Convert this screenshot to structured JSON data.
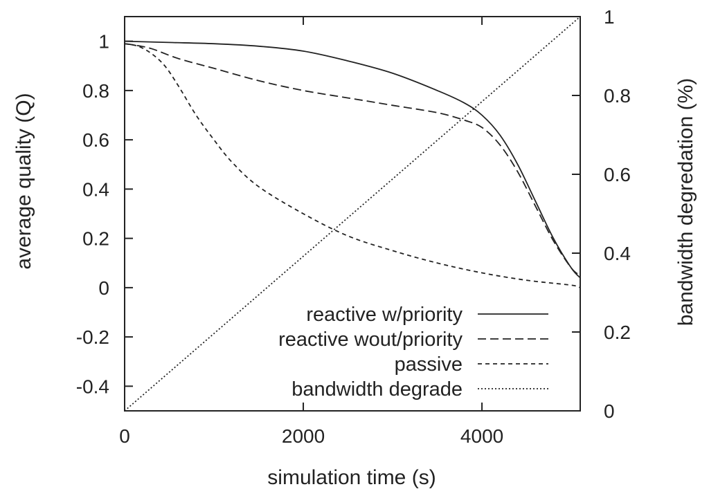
{
  "chart_data": {
    "type": "line",
    "xlabel": "simulation time (s)",
    "ylabel": "average quality (Q)",
    "y2label": "bandwidth degredation (%)",
    "xlim": [
      0,
      5100
    ],
    "ylim": [
      -0.5,
      1.1
    ],
    "y2lim": [
      0,
      1
    ],
    "xticks": [
      0,
      2000,
      4000
    ],
    "yticks": [
      -0.4,
      -0.2,
      0,
      0.2,
      0.4,
      0.6,
      0.8,
      1
    ],
    "y2ticks": [
      0,
      0.2,
      0.4,
      0.6,
      0.8,
      1
    ],
    "xtick_labels": [
      "0",
      "2000",
      "4000"
    ],
    "ytick_labels": [
      "-0.4",
      "-0.2",
      "0",
      "0.2",
      "0.4",
      "0.6",
      "0.8",
      "1"
    ],
    "y2tick_labels": [
      "0",
      "0.2",
      "0.4",
      "0.6",
      "0.8",
      "1"
    ],
    "legend_position": "bottom-right",
    "series": [
      {
        "name": "reactive w/priority",
        "axis": "left",
        "dash": "solid",
        "x": [
          0,
          500,
          1000,
          1500,
          2000,
          2500,
          3000,
          3500,
          3800,
          4000,
          4200,
          4400,
          4600,
          4800,
          5000,
          5100
        ],
        "y": [
          1.0,
          0.995,
          0.99,
          0.98,
          0.96,
          0.92,
          0.87,
          0.8,
          0.75,
          0.7,
          0.62,
          0.5,
          0.35,
          0.2,
          0.08,
          0.04
        ]
      },
      {
        "name": "reactive wout/priority",
        "axis": "left",
        "dash": "long-dash",
        "x": [
          0,
          100,
          300,
          600,
          1000,
          1500,
          2000,
          2500,
          3000,
          3500,
          3800,
          4000,
          4200,
          4400,
          4600,
          4800,
          5000,
          5100
        ],
        "y": [
          0.99,
          0.985,
          0.97,
          0.93,
          0.89,
          0.84,
          0.8,
          0.77,
          0.74,
          0.71,
          0.68,
          0.65,
          0.58,
          0.47,
          0.33,
          0.19,
          0.08,
          0.05
        ]
      },
      {
        "name": "passive",
        "axis": "left",
        "dash": "short-dash",
        "x": [
          0,
          150,
          300,
          450,
          600,
          800,
          1000,
          1200,
          1500,
          2000,
          2500,
          3000,
          3500,
          4000,
          4500,
          5000,
          5100
        ],
        "y": [
          0.99,
          0.98,
          0.95,
          0.9,
          0.82,
          0.7,
          0.6,
          0.51,
          0.41,
          0.3,
          0.21,
          0.15,
          0.1,
          0.06,
          0.03,
          0.01,
          0.0
        ]
      },
      {
        "name": "bandwidth degrade",
        "axis": "right",
        "dash": "dotted",
        "x": [
          0,
          5100
        ],
        "y": [
          0,
          1
        ]
      }
    ]
  }
}
